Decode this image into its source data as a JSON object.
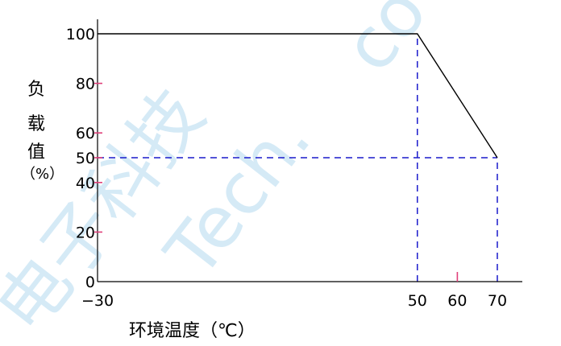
{
  "chart_data": {
    "type": "line",
    "title": "",
    "xlabel": "环境温度（℃）",
    "ylabel": "负载值（%）",
    "xlim": [
      -30,
      80
    ],
    "ylim": [
      0,
      110
    ],
    "x_ticks": [
      -30,
      50,
      60,
      70
    ],
    "y_ticks": [
      0,
      20,
      40,
      50,
      60,
      80,
      100
    ],
    "grid": false,
    "series": [
      {
        "values": [
          [
            -30,
            100
          ],
          [
            50,
            100
          ],
          [
            70,
            50
          ]
        ]
      }
    ],
    "reference_lines": [
      {
        "from": [
          50,
          0
        ],
        "to": [
          50,
          100
        ]
      },
      {
        "from": [
          -30,
          50
        ],
        "to": [
          70,
          50
        ]
      },
      {
        "from": [
          70,
          0
        ],
        "to": [
          70,
          50
        ]
      }
    ],
    "colors": {
      "series": "#000000",
      "reference": "#1a1acc",
      "tick": "#e0407a",
      "axis": "#000000"
    }
  },
  "watermark": [
    "电子科技",
    "Tech.",
    "co"
  ]
}
